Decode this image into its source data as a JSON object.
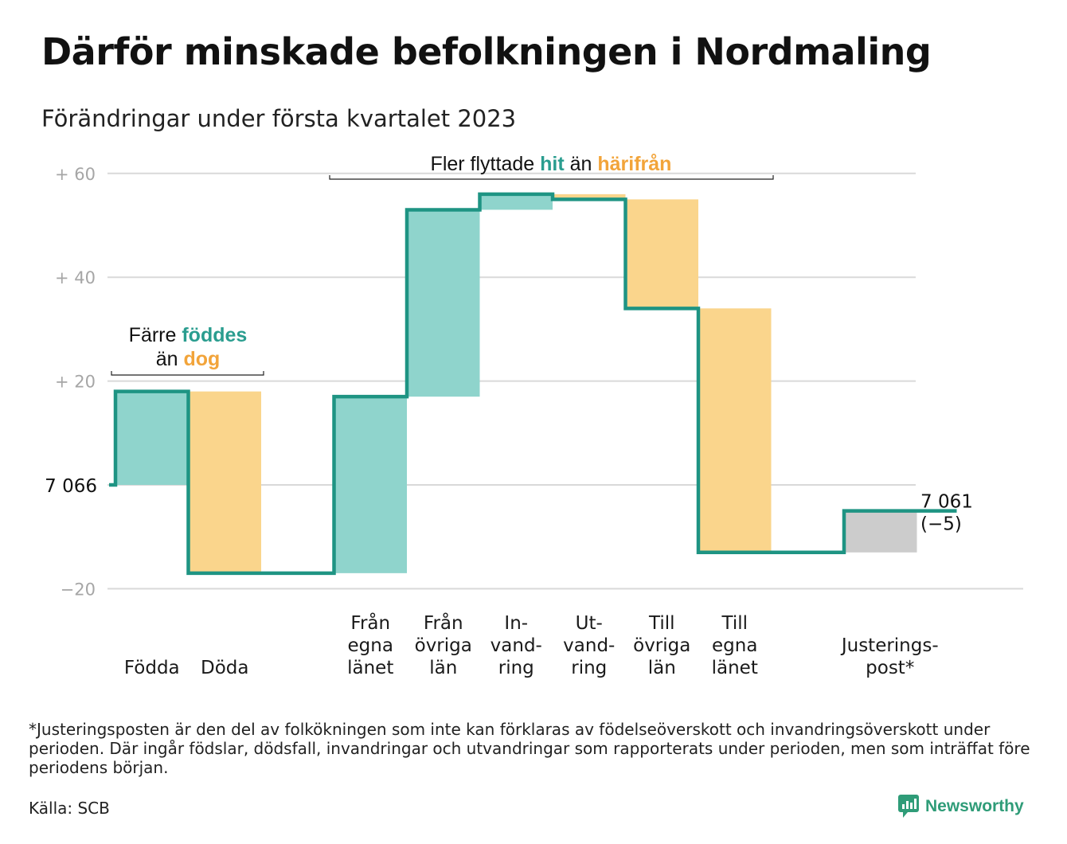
{
  "title": "Därför minskade befolkningen i Nordmaling",
  "subtitle": "Förändringar under första kvartalet 2023",
  "colors": {
    "teal": "#2a9d8f",
    "line": "#1e9483",
    "teal_fill": "#8fd4cc",
    "orange_fill": "#fad58c",
    "orange_text": "#f2a43a",
    "grey_fill": "#cccccc",
    "grid": "#d9d9d9",
    "tick": "#a6a6a6"
  },
  "chart_data": {
    "type": "bar",
    "chart_style": "waterfall",
    "baseline_label": "7 066",
    "end_label_value": "7 061",
    "end_label_change": "(−5)",
    "y_ticks": [
      {
        "value": 60,
        "label": "+ 60"
      },
      {
        "value": 40,
        "label": "+ 40"
      },
      {
        "value": 20,
        "label": "+ 20"
      },
      {
        "value": -20,
        "label": "−20"
      }
    ],
    "ylim": [
      -20,
      60
    ],
    "grid": true,
    "steps": [
      {
        "label": [
          "Födda"
        ],
        "change": 18,
        "kind": "in"
      },
      {
        "label": [
          "Döda"
        ],
        "change": -35,
        "kind": "out"
      },
      {
        "label": [],
        "change": 0,
        "kind": "gap"
      },
      {
        "label": [
          "Från",
          "egna",
          "länet"
        ],
        "change": 34,
        "kind": "in"
      },
      {
        "label": [
          "Från",
          "övriga",
          "län"
        ],
        "change": 36,
        "kind": "in"
      },
      {
        "label": [
          "In-",
          "vand-",
          "ring"
        ],
        "change": 3,
        "kind": "in"
      },
      {
        "label": [
          "Ut-",
          "vand-",
          "ring"
        ],
        "change": -1,
        "kind": "out"
      },
      {
        "label": [
          "Till",
          "övriga",
          "län"
        ],
        "change": -21,
        "kind": "out"
      },
      {
        "label": [
          "Till",
          "egna",
          "länet"
        ],
        "change": -47,
        "kind": "out"
      },
      {
        "label": [],
        "change": 0,
        "kind": "gap"
      },
      {
        "label": [
          "Justerings-",
          "post*"
        ],
        "change": 8,
        "kind": "adjust"
      }
    ],
    "annotations": [
      {
        "parts": [
          [
            "Färre ",
            "plain"
          ],
          [
            "föddes",
            "teal"
          ]
        ],
        "parts2": [
          [
            "än ",
            "plain"
          ],
          [
            "dog",
            "orange"
          ]
        ]
      },
      {
        "parts": [
          [
            "Fler flyttade ",
            "plain"
          ],
          [
            "hit",
            "teal"
          ],
          [
            " än ",
            "plain"
          ],
          [
            "härifrån",
            "orange"
          ]
        ]
      }
    ]
  },
  "footnote": "*Justeringsposten är den del av folkökningen som inte kan förklaras av födelseöverskott och invandringsöverskott under perioden. Där ingår födslar, dödsfall, invandringar och utvandringar som rapporterats under perioden, men som inträffat före periodens början.",
  "source": "Källa: SCB",
  "brand": "Newsworthy"
}
